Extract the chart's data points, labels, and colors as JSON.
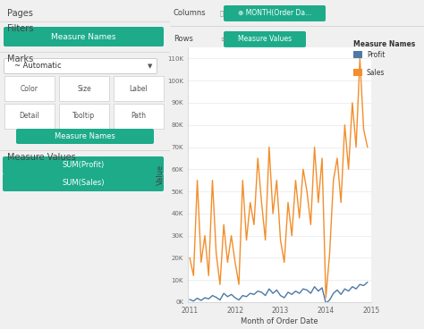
{
  "xlabel": "Month of Order Date",
  "ylabel": "Value",
  "ylim": [
    0,
    115000
  ],
  "yticks": [
    0,
    10000,
    20000,
    30000,
    40000,
    50000,
    60000,
    70000,
    80000,
    90000,
    100000,
    110000
  ],
  "ytick_labels": [
    "0K",
    "10K",
    "20K",
    "30K",
    "40K",
    "50K",
    "60K",
    "70K",
    "80K",
    "90K",
    "100K",
    "110K"
  ],
  "profit_color": "#4e79a7",
  "sales_color": "#f28e2b",
  "plot_bg_color": "#ffffff",
  "grid_color": "#e8e8e8",
  "legend_title": "Measure Names",
  "teal_color": "#1dab8a",
  "sidebar_bg": "#f5f5f5",
  "top_bar_bg": "#ebebeb",
  "columns_label": "MONTH(Order Da...",
  "rows_label": "Measure Values",
  "profit_data": [
    1200,
    500,
    1800,
    800,
    2000,
    1500,
    3000,
    2200,
    1000,
    4000,
    2500,
    3500,
    2000,
    1000,
    3000,
    2500,
    4000,
    3500,
    5000,
    4500,
    3000,
    6000,
    4000,
    5500,
    3000,
    2000,
    4500,
    3500,
    5000,
    4000,
    6000,
    5500,
    4000,
    7000,
    5000,
    6500,
    -500,
    1000,
    4000,
    5500,
    3500,
    6000,
    5000,
    7000,
    6000,
    8000,
    7500,
    9000
  ],
  "sales_data": [
    20000,
    12000,
    55000,
    18000,
    30000,
    12000,
    55000,
    22000,
    8000,
    35000,
    18000,
    30000,
    18000,
    8000,
    55000,
    28000,
    45000,
    35000,
    65000,
    45000,
    28000,
    70000,
    40000,
    55000,
    28000,
    18000,
    45000,
    30000,
    55000,
    38000,
    60000,
    50000,
    35000,
    70000,
    45000,
    65000,
    2000,
    22000,
    55000,
    65000,
    45000,
    80000,
    60000,
    90000,
    70000,
    110000,
    78000,
    70000
  ],
  "x_tick_positions": [
    0,
    12,
    24,
    36,
    48
  ],
  "x_tick_labels": [
    "2011",
    "2012",
    "2013",
    "2014",
    "2015"
  ]
}
